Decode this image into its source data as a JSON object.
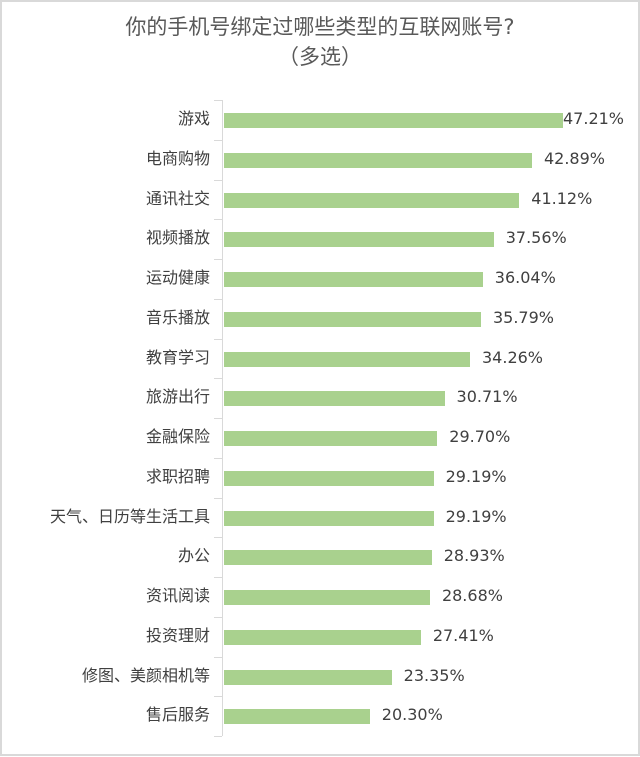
{
  "title_line1": "你的手机号绑定过哪些类型的互联网账号?",
  "title_line2": "（多选）",
  "bar_color": "#a9d18e",
  "chart_data": {
    "type": "bar",
    "orientation": "horizontal",
    "title": "你的手机号绑定过哪些类型的互联网账号?（多选）",
    "xlabel": "",
    "ylabel": "",
    "grid": false,
    "legend": null,
    "categories": [
      "游戏",
      "电商购物",
      "通讯社交",
      "视频播放",
      "运动健康",
      "音乐播放",
      "教育学习",
      "旅游出行",
      "金融保险",
      "求职招聘",
      "天气、日历等生活工具",
      "办公",
      "资讯阅读",
      "投资理财",
      "修图、美颜相机等",
      "售后服务"
    ],
    "values": [
      47.21,
      42.89,
      41.12,
      37.56,
      36.04,
      35.79,
      34.26,
      30.71,
      29.7,
      29.19,
      29.19,
      28.93,
      28.68,
      27.41,
      23.35,
      20.3
    ],
    "value_labels": [
      "47.21%",
      "42.89%",
      "41.12%",
      "37.56%",
      "36.04%",
      "35.79%",
      "34.26%",
      "30.71%",
      "29.70%",
      "29.19%",
      "29.19%",
      "28.93%",
      "28.68%",
      "27.41%",
      "23.35%",
      "20.30%"
    ],
    "unit": "%"
  }
}
